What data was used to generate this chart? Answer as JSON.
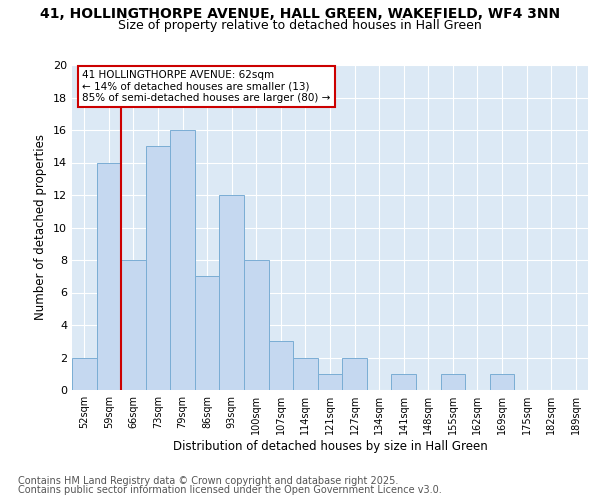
{
  "title1": "41, HOLLINGTHORPE AVENUE, HALL GREEN, WAKEFIELD, WF4 3NN",
  "title2": "Size of property relative to detached houses in Hall Green",
  "xlabel": "Distribution of detached houses by size in Hall Green",
  "ylabel": "Number of detached properties",
  "bins": [
    "52sqm",
    "59sqm",
    "66sqm",
    "73sqm",
    "79sqm",
    "86sqm",
    "93sqm",
    "100sqm",
    "107sqm",
    "114sqm",
    "121sqm",
    "127sqm",
    "134sqm",
    "141sqm",
    "148sqm",
    "155sqm",
    "162sqm",
    "169sqm",
    "175sqm",
    "182sqm",
    "189sqm"
  ],
  "values": [
    2,
    14,
    8,
    15,
    16,
    7,
    12,
    8,
    3,
    2,
    1,
    2,
    0,
    1,
    0,
    1,
    0,
    1,
    0,
    0,
    0
  ],
  "bar_color": "#c5d8f0",
  "bar_edge_color": "#7aadd4",
  "annotation_text": "41 HOLLINGTHORPE AVENUE: 62sqm\n← 14% of detached houses are smaller (13)\n85% of semi-detached houses are larger (80) →",
  "annotation_box_color": "#ffffff",
  "annotation_box_edge": "#cc0000",
  "vline_color": "#cc0000",
  "ylim": [
    0,
    20
  ],
  "yticks": [
    0,
    2,
    4,
    6,
    8,
    10,
    12,
    14,
    16,
    18,
    20
  ],
  "plot_bg_color": "#dce9f5",
  "fig_bg_color": "#ffffff",
  "footer1": "Contains HM Land Registry data © Crown copyright and database right 2025.",
  "footer2": "Contains public sector information licensed under the Open Government Licence v3.0.",
  "title1_fontsize": 10,
  "title2_fontsize": 9,
  "footer_fontsize": 7
}
